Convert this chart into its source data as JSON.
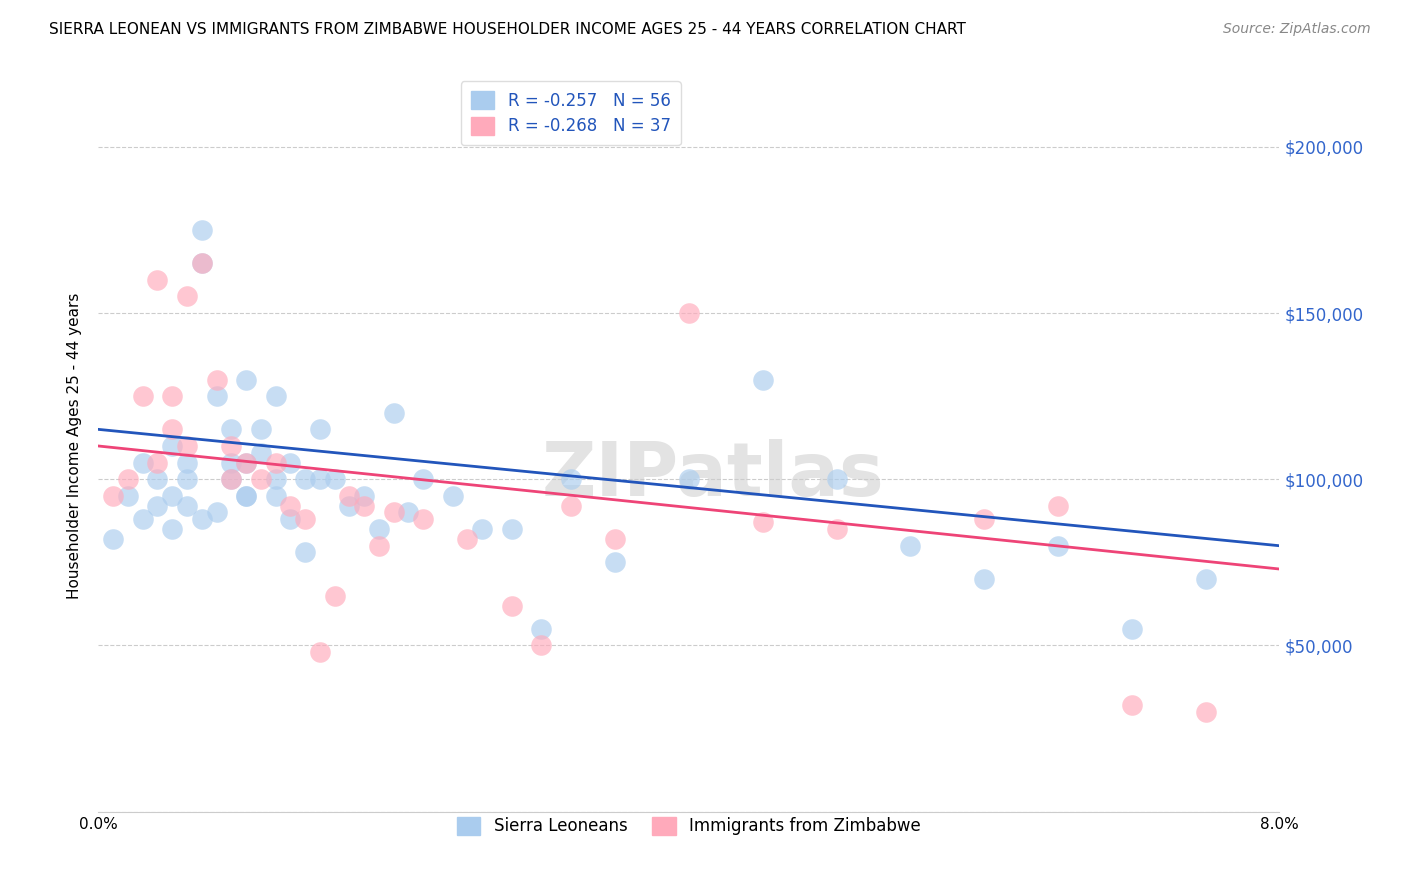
{
  "title": "SIERRA LEONEAN VS IMMIGRANTS FROM ZIMBABWE HOUSEHOLDER INCOME AGES 25 - 44 YEARS CORRELATION CHART",
  "source": "Source: ZipAtlas.com",
  "ylabel": "Householder Income Ages 25 - 44 years",
  "xlim": [
    0.0,
    0.08
  ],
  "ylim": [
    0,
    220000
  ],
  "yticks": [
    0,
    50000,
    100000,
    150000,
    200000
  ],
  "xticks": [
    0.0,
    0.01,
    0.02,
    0.03,
    0.04,
    0.05,
    0.06,
    0.07,
    0.08
  ],
  "legend_r1": "-0.257",
  "legend_n1": "56",
  "legend_r2": "-0.268",
  "legend_n2": "37",
  "legend_label1": "Sierra Leoneans",
  "legend_label2": "Immigrants from Zimbabwe",
  "blue_color": "#AACCEE",
  "pink_color": "#FFAABB",
  "blue_line_color": "#2255BB",
  "pink_line_color": "#EE4477",
  "watermark": "ZIPatlas",
  "blue_x": [
    0.001,
    0.002,
    0.003,
    0.003,
    0.004,
    0.004,
    0.005,
    0.005,
    0.006,
    0.006,
    0.007,
    0.007,
    0.008,
    0.008,
    0.009,
    0.009,
    0.01,
    0.01,
    0.01,
    0.011,
    0.011,
    0.012,
    0.012,
    0.013,
    0.013,
    0.014,
    0.014,
    0.015,
    0.015,
    0.016,
    0.017,
    0.018,
    0.019,
    0.02,
    0.021,
    0.022,
    0.024,
    0.026,
    0.028,
    0.03,
    0.032,
    0.035,
    0.04,
    0.045,
    0.05,
    0.055,
    0.06,
    0.065,
    0.07,
    0.075,
    0.005,
    0.006,
    0.007,
    0.009,
    0.01,
    0.012
  ],
  "blue_y": [
    82000,
    95000,
    105000,
    88000,
    100000,
    92000,
    110000,
    95000,
    100000,
    92000,
    175000,
    165000,
    125000,
    90000,
    115000,
    105000,
    130000,
    105000,
    95000,
    115000,
    108000,
    125000,
    95000,
    105000,
    88000,
    100000,
    78000,
    115000,
    100000,
    100000,
    92000,
    95000,
    85000,
    120000,
    90000,
    100000,
    95000,
    85000,
    85000,
    55000,
    100000,
    75000,
    100000,
    130000,
    100000,
    80000,
    70000,
    80000,
    55000,
    70000,
    85000,
    105000,
    88000,
    100000,
    95000,
    100000
  ],
  "pink_x": [
    0.001,
    0.002,
    0.003,
    0.004,
    0.004,
    0.005,
    0.005,
    0.006,
    0.006,
    0.007,
    0.008,
    0.009,
    0.009,
    0.01,
    0.011,
    0.012,
    0.013,
    0.014,
    0.015,
    0.016,
    0.017,
    0.018,
    0.019,
    0.02,
    0.022,
    0.025,
    0.028,
    0.03,
    0.032,
    0.035,
    0.04,
    0.045,
    0.05,
    0.06,
    0.065,
    0.07,
    0.075
  ],
  "pink_y": [
    95000,
    100000,
    125000,
    160000,
    105000,
    115000,
    125000,
    155000,
    110000,
    165000,
    130000,
    110000,
    100000,
    105000,
    100000,
    105000,
    92000,
    88000,
    48000,
    65000,
    95000,
    92000,
    80000,
    90000,
    88000,
    82000,
    62000,
    50000,
    92000,
    82000,
    150000,
    87000,
    85000,
    88000,
    92000,
    32000,
    30000
  ],
  "blue_regline_x": [
    0.0,
    0.08
  ],
  "blue_regline_y": [
    115000,
    80000
  ],
  "pink_regline_x": [
    0.0,
    0.08
  ],
  "pink_regline_y": [
    110000,
    73000
  ]
}
